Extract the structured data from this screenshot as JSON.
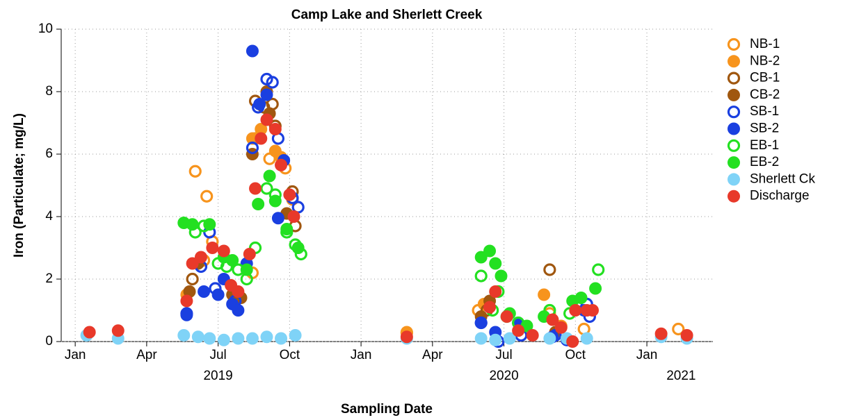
{
  "chart_data": {
    "type": "scatter",
    "title": "Camp Lake and Sherlett Creek",
    "x_label": "Sampling Date",
    "y_label": "Iron (Particulate; mg/L)",
    "xlim": [
      2018.951,
      2021.231
    ],
    "ylim": [
      0,
      10
    ],
    "xticks": [
      {
        "value": 2019.0,
        "label": "Jan"
      },
      {
        "value": 2019.25,
        "label": "Apr"
      },
      {
        "value": 2019.5,
        "label": "Jul"
      },
      {
        "value": 2019.75,
        "label": "Oct"
      },
      {
        "value": 2020.0,
        "label": "Jan"
      },
      {
        "value": 2020.25,
        "label": "Apr"
      },
      {
        "value": 2020.5,
        "label": "Jul"
      },
      {
        "value": 2020.75,
        "label": "Oct"
      },
      {
        "value": 2021.0,
        "label": "Jan"
      }
    ],
    "x_year_labels": [
      {
        "value": 2019.5,
        "label": "2019"
      },
      {
        "value": 2020.5,
        "label": "2020"
      },
      {
        "value": 2021.12,
        "label": "2021"
      }
    ],
    "yticks": [
      0,
      2,
      4,
      6,
      8,
      10
    ],
    "grid": true,
    "legend": "right",
    "series": [
      {
        "name": "NB-1",
        "color": "#f7941d",
        "marker": "open",
        "x": [
          2019.42,
          2019.46,
          2019.48,
          2019.45,
          2019.62,
          2019.63,
          2019.68,
          2019.735,
          2019.76,
          2020.16,
          2020.41,
          2020.66,
          2020.78,
          2021.11
        ],
        "values": [
          5.45,
          4.65,
          3.2,
          2.6,
          2.2,
          6.5,
          5.85,
          5.55,
          4.55,
          0.28,
          1.0,
          0.9,
          0.4,
          0.4
        ]
      },
      {
        "name": "NB-2",
        "color": "#f7941d",
        "marker": "filled",
        "x": [
          2019.39,
          2019.62,
          2019.65,
          2019.7,
          2019.72,
          2020.16,
          2020.43,
          2020.64,
          2020.7
        ],
        "values": [
          1.5,
          6.5,
          6.8,
          6.1,
          5.9,
          0.3,
          1.2,
          1.5,
          0.5
        ]
      },
      {
        "name": "CB-1",
        "color": "#a0570f",
        "marker": "open",
        "x": [
          2019.41,
          2019.63,
          2019.66,
          2019.7,
          2019.69,
          2019.76,
          2019.77,
          2020.66,
          2020.44
        ],
        "values": [
          2.0,
          7.7,
          7.5,
          6.9,
          7.6,
          4.8,
          3.7,
          2.3,
          1.0
        ]
      },
      {
        "name": "CB-2",
        "color": "#a0570f",
        "marker": "filled",
        "x": [
          2019.4,
          2019.43,
          2019.55,
          2019.58,
          2019.62,
          2019.67,
          2019.68,
          2019.74,
          2020.42,
          2020.45,
          2020.68
        ],
        "values": [
          1.6,
          2.5,
          1.5,
          1.4,
          6.0,
          8.0,
          7.3,
          4.1,
          0.8,
          1.3,
          0.3
        ]
      },
      {
        "name": "SB-1",
        "color": "#1a3fe0",
        "marker": "open",
        "x": [
          2019.39,
          2019.44,
          2019.47,
          2019.49,
          2019.56,
          2019.62,
          2019.64,
          2019.67,
          2019.69,
          2019.71,
          2019.76,
          2019.78,
          2020.42,
          2020.48,
          2020.56,
          2020.68,
          2020.72,
          2020.79,
          2020.8
        ],
        "values": [
          0.9,
          2.4,
          3.5,
          1.7,
          1.3,
          6.2,
          7.5,
          8.4,
          8.3,
          6.5,
          4.6,
          4.3,
          0.6,
          0.0,
          0.2,
          0.2,
          0.05,
          1.2,
          0.8
        ]
      },
      {
        "name": "SB-2",
        "color": "#1a3fe0",
        "marker": "filled",
        "x": [
          2019.39,
          2019.45,
          2019.5,
          2019.52,
          2019.55,
          2019.57,
          2019.6,
          2019.62,
          2019.645,
          2019.67,
          2019.71,
          2019.73,
          2020.42,
          2020.47,
          2020.55,
          2020.67,
          2020.78
        ],
        "values": [
          0.85,
          1.6,
          1.5,
          2.0,
          1.2,
          1.0,
          2.5,
          9.3,
          7.6,
          7.9,
          3.95,
          5.8,
          0.6,
          0.3,
          0.6,
          0.15,
          1.0
        ]
      },
      {
        "name": "EB-1",
        "color": "#23e021",
        "marker": "open",
        "x": [
          2019.42,
          2019.45,
          2019.5,
          2019.53,
          2019.57,
          2019.6,
          2019.63,
          2019.67,
          2019.7,
          2019.74,
          2019.77,
          2019.79,
          2020.42,
          2020.46,
          2020.48,
          2020.51,
          2020.55,
          2020.66,
          2020.73,
          2020.83
        ],
        "values": [
          3.5,
          3.7,
          2.5,
          2.4,
          2.3,
          2.0,
          3.0,
          4.9,
          4.7,
          3.5,
          3.1,
          2.8,
          2.1,
          1.0,
          1.6,
          0.8,
          0.6,
          1.0,
          0.9,
          2.3
        ]
      },
      {
        "name": "EB-2",
        "color": "#23e021",
        "marker": "filled",
        "x": [
          2019.38,
          2019.41,
          2019.47,
          2019.52,
          2019.55,
          2019.6,
          2019.64,
          2019.68,
          2019.7,
          2019.74,
          2019.78,
          2020.42,
          2020.45,
          2020.47,
          2020.49,
          2020.52,
          2020.58,
          2020.64,
          2020.74,
          2020.77,
          2020.82
        ],
        "values": [
          3.8,
          3.75,
          3.75,
          2.7,
          2.6,
          2.3,
          4.4,
          5.3,
          4.5,
          3.6,
          3.0,
          2.7,
          2.9,
          2.5,
          2.1,
          0.9,
          0.5,
          0.8,
          1.3,
          1.4,
          1.7
        ]
      },
      {
        "name": "Sherlett Ck",
        "color": "#7fd3f7",
        "marker": "filled",
        "x": [
          2019.04,
          2019.15,
          2019.38,
          2019.43,
          2019.47,
          2019.52,
          2019.57,
          2019.62,
          2019.67,
          2019.72,
          2019.77,
          2020.16,
          2020.42,
          2020.47,
          2020.52,
          2020.66,
          2020.72,
          2020.79,
          2021.05,
          2021.14
        ],
        "values": [
          0.2,
          0.1,
          0.2,
          0.15,
          0.1,
          0.05,
          0.1,
          0.1,
          0.15,
          0.1,
          0.2,
          0.1,
          0.1,
          0.05,
          0.1,
          0.1,
          0.1,
          0.1,
          0.15,
          0.1
        ]
      },
      {
        "name": "Discharge",
        "color": "#e8392a",
        "marker": "filled",
        "x": [
          2019.05,
          2019.15,
          2019.39,
          2019.41,
          2019.44,
          2019.48,
          2019.52,
          2019.545,
          2019.57,
          2019.61,
          2019.63,
          2019.65,
          2019.67,
          2019.7,
          2019.72,
          2019.75,
          2019.765,
          2020.16,
          2020.45,
          2020.47,
          2020.51,
          2020.55,
          2020.6,
          2020.67,
          2020.7,
          2020.74,
          2020.75,
          2020.79,
          2020.81,
          2021.05,
          2021.14
        ],
        "values": [
          0.3,
          0.35,
          1.3,
          2.5,
          2.7,
          3.0,
          2.9,
          1.8,
          1.6,
          2.8,
          4.9,
          6.5,
          7.1,
          6.8,
          5.65,
          4.7,
          4.0,
          0.15,
          1.1,
          1.6,
          0.8,
          0.35,
          0.2,
          0.7,
          0.45,
          0.0,
          1.0,
          1.0,
          1.0,
          0.25,
          0.2
        ]
      }
    ]
  }
}
